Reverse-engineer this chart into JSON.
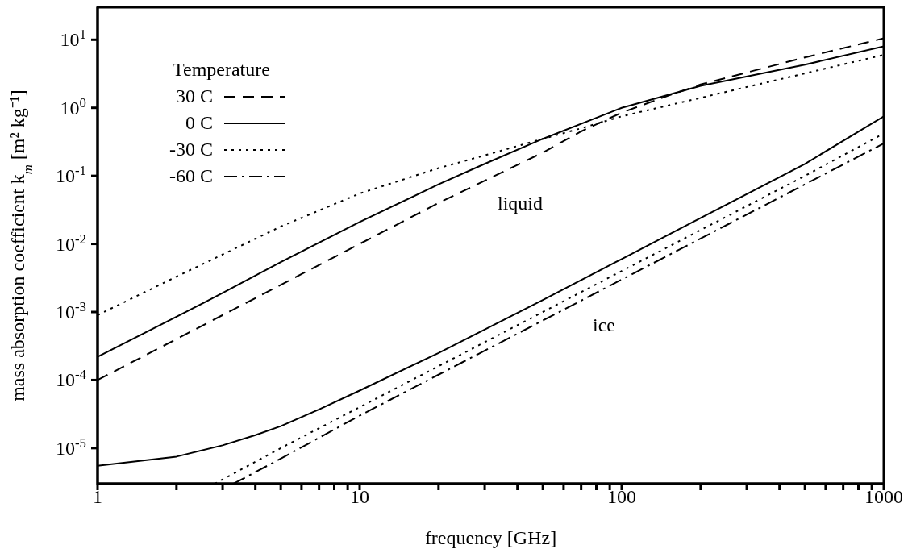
{
  "chart_data": {
    "type": "line",
    "xlabel": "frequency [GHz]",
    "ylabel": "mass absorption coefficient  k$_{m}$ [m² kg⁻¹]",
    "legend_title": "Temperature",
    "legend": "top left",
    "log": "xy",
    "grid": false,
    "xlim": [
      1,
      1000
    ],
    "ylim": [
      3e-06,
      30
    ],
    "xticks": [
      1,
      {
        "value": 2,
        "label": null
      },
      {
        "value": 3,
        "label": null
      },
      {
        "value": 4,
        "label": null
      },
      {
        "value": 5,
        "label": null
      },
      {
        "value": 6,
        "label": null
      },
      {
        "value": 7,
        "label": null
      },
      {
        "value": 8,
        "label": null
      },
      {
        "value": 9,
        "label": null
      },
      10,
      {
        "value": 20,
        "label": null
      },
      {
        "value": 30,
        "label": null
      },
      {
        "value": 40,
        "label": null
      },
      {
        "value": 50,
        "label": null
      },
      {
        "value": 60,
        "label": null
      },
      {
        "value": 70,
        "label": null
      },
      {
        "value": 80,
        "label": null
      },
      {
        "value": 90,
        "label": null
      },
      100,
      {
        "value": 200,
        "label": null
      },
      {
        "value": 300,
        "label": null
      },
      {
        "value": 400,
        "label": null
      },
      {
        "value": 500,
        "label": null
      },
      {
        "value": 600,
        "label": null
      },
      {
        "value": 700,
        "label": null
      },
      {
        "value": 800,
        "label": null
      },
      {
        "value": 900,
        "label": null
      },
      1000
    ],
    "yticks": [
      {
        "value": 1e-05,
        "label": "10$^{-5}$"
      },
      {
        "value": 0.0001,
        "label": "10$^{-4}$"
      },
      {
        "value": 0.001,
        "label": "10$^{-3}$"
      },
      {
        "value": 0.01,
        "label": "10$^{-2}$"
      },
      {
        "value": 0.1,
        "label": "10$^{-1}$"
      },
      {
        "value": 1,
        "label": "10$^{0}$"
      },
      {
        "value": 10,
        "label": "10$^{1}$"
      }
    ],
    "annotations": [
      "liquid",
      "ice"
    ],
    "series": [
      {
        "name": "30 C",
        "color": "#000000",
        "line_style": "dashed",
        "x": [
          1,
          2,
          5,
          10,
          20,
          50,
          70,
          100,
          150,
          200,
          500,
          1000
        ],
        "values": [
          0.0001,
          0.0004,
          0.0025,
          0.01,
          0.04,
          0.22,
          0.45,
          0.85,
          1.5,
          2.2,
          5.5,
          10.5
        ]
      },
      {
        "name": "0 C",
        "color": "#000000",
        "line_style": "solid",
        "x": [
          1,
          2,
          3,
          5,
          10,
          20,
          30,
          50,
          100,
          200,
          500,
          1000
        ],
        "values": [
          0.00022,
          0.00085,
          0.0019,
          0.0054,
          0.021,
          0.075,
          0.15,
          0.35,
          1.0,
          2.1,
          4.3,
          8
        ]
      },
      {
        "name": "-30 C",
        "color": "#000000",
        "line_style": "dotted",
        "x": [
          1,
          2,
          5,
          10,
          20,
          30,
          50,
          70,
          100,
          200,
          500,
          1000
        ],
        "values": [
          0.0009,
          0.0033,
          0.018,
          0.055,
          0.13,
          0.2,
          0.35,
          0.5,
          0.75,
          1.4,
          3.2,
          6
        ]
      },
      {
        "color": "#000000",
        "line_style": "solid",
        "x": [
          1,
          2,
          3,
          4,
          5,
          7,
          10,
          20,
          50,
          100,
          200,
          500,
          1000
        ],
        "values": [
          5.5e-06,
          7.5e-06,
          1.1e-05,
          1.55e-05,
          2.1e-05,
          3.7e-05,
          7e-05,
          0.00025,
          0.0015,
          0.006,
          0.024,
          0.15,
          0.75
        ]
      },
      {
        "color": "#000000",
        "line_style": "dotted",
        "x": [
          2.8,
          5,
          10,
          20,
          50,
          100,
          200,
          500,
          1000
        ],
        "values": [
          3e-06,
          1e-05,
          4e-05,
          0.00016,
          0.001,
          0.004,
          0.016,
          0.1,
          0.42
        ]
      },
      {
        "name": "-60 C",
        "color": "#000000",
        "line_style": "dashdot",
        "x": [
          3.3,
          5,
          10,
          20,
          50,
          100,
          200,
          500,
          1000
        ],
        "values": [
          3e-06,
          7e-06,
          3e-05,
          0.00012,
          0.00075,
          0.003,
          0.012,
          0.075,
          0.3
        ]
      }
    ]
  }
}
